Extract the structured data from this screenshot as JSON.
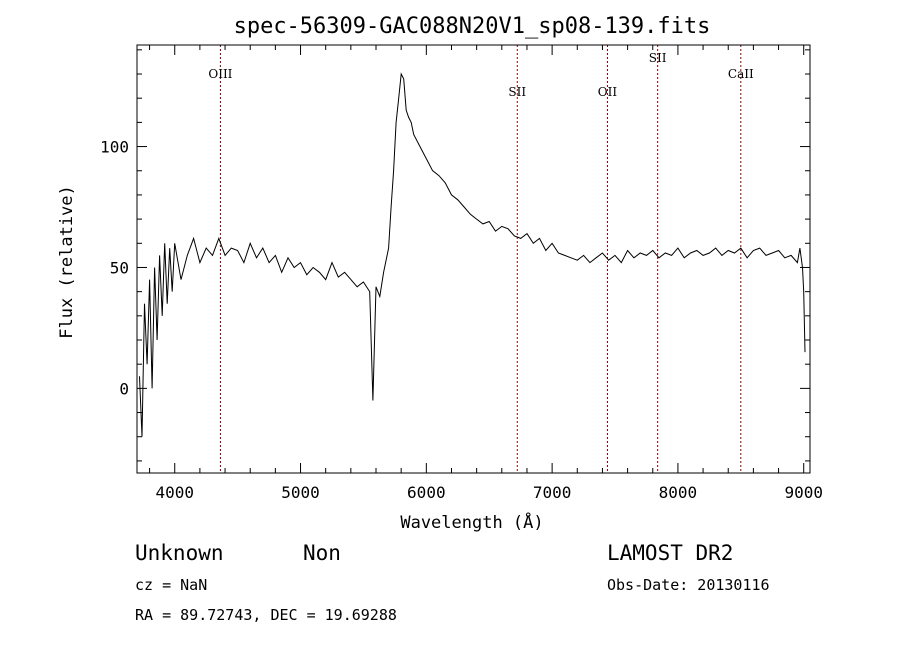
{
  "chart_data": {
    "type": "line",
    "title": "spec-56309-GAC088N20V1_sp08-139.fits",
    "xlabel": "Wavelength (Å)",
    "ylabel": "Flux (relative)",
    "xlim": [
      3700,
      9050
    ],
    "ylim": [
      -35,
      142
    ],
    "x_ticks": [
      4000,
      5000,
      6000,
      7000,
      8000,
      9000
    ],
    "y_ticks": [
      0,
      50,
      100
    ],
    "grid": false,
    "spectral_lines": [
      {
        "label": "OIII",
        "wavelength": 4363
      },
      {
        "label": "SII",
        "wavelength": 6723
      },
      {
        "label": "OII",
        "wavelength": 7440
      },
      {
        "label": "SII",
        "wavelength": 7839
      },
      {
        "label": "CaII",
        "wavelength": 8500
      }
    ],
    "series": [
      {
        "x": [
          3720,
          3740,
          3760,
          3780,
          3800,
          3820,
          3840,
          3860,
          3880,
          3900,
          3920,
          3940,
          3960,
          3980,
          4000,
          4050,
          4100,
          4150,
          4200,
          4250,
          4300,
          4350,
          4400,
          4450,
          4500,
          4550,
          4600,
          4650,
          4700,
          4750,
          4800,
          4850,
          4900,
          4950,
          5000,
          5050,
          5100,
          5150,
          5200,
          5250,
          5300,
          5350,
          5400,
          5450,
          5500,
          5550,
          5575,
          5600,
          5630,
          5660,
          5700,
          5720,
          5740,
          5760,
          5780,
          5800,
          5820,
          5840,
          5860,
          5880,
          5900,
          5950,
          6000,
          6050,
          6100,
          6150,
          6200,
          6250,
          6300,
          6350,
          6400,
          6450,
          6500,
          6550,
          6600,
          6650,
          6700,
          6750,
          6800,
          6850,
          6900,
          6950,
          7000,
          7050,
          7100,
          7150,
          7200,
          7250,
          7300,
          7350,
          7400,
          7450,
          7500,
          7550,
          7600,
          7650,
          7700,
          7750,
          7800,
          7850,
          7900,
          7950,
          8000,
          8050,
          8100,
          8150,
          8200,
          8250,
          8300,
          8350,
          8400,
          8450,
          8500,
          8550,
          8600,
          8650,
          8700,
          8750,
          8800,
          8850,
          8900,
          8950,
          8970,
          8990,
          9000,
          9010
        ],
        "y": [
          5,
          -20,
          35,
          10,
          45,
          0,
          50,
          20,
          55,
          30,
          60,
          35,
          58,
          40,
          60,
          45,
          55,
          62,
          52,
          58,
          55,
          62,
          55,
          58,
          57,
          52,
          60,
          54,
          58,
          52,
          55,
          48,
          54,
          50,
          52,
          47,
          50,
          48,
          45,
          52,
          46,
          48,
          45,
          42,
          44,
          40,
          -5,
          42,
          38,
          48,
          58,
          75,
          90,
          110,
          120,
          130,
          128,
          115,
          112,
          110,
          105,
          100,
          95,
          90,
          88,
          85,
          80,
          78,
          75,
          72,
          70,
          68,
          69,
          65,
          67,
          66,
          63,
          62,
          64,
          60,
          62,
          57,
          60,
          56,
          55,
          54,
          53,
          55,
          52,
          54,
          56,
          53,
          55,
          52,
          57,
          54,
          56,
          55,
          57,
          54,
          56,
          55,
          58,
          54,
          56,
          57,
          55,
          56,
          58,
          55,
          57,
          56,
          58,
          54,
          57,
          58,
          55,
          56,
          57,
          54,
          55,
          52,
          58,
          50,
          40,
          15
        ]
      }
    ]
  },
  "info": {
    "object_class": "Unknown",
    "object_subclass": "Non",
    "survey": "LAMOST DR2",
    "cz": "cz = NaN",
    "obs_date": "Obs-Date: 20130116",
    "coords": "RA =  89.72743, DEC =  19.69288"
  }
}
